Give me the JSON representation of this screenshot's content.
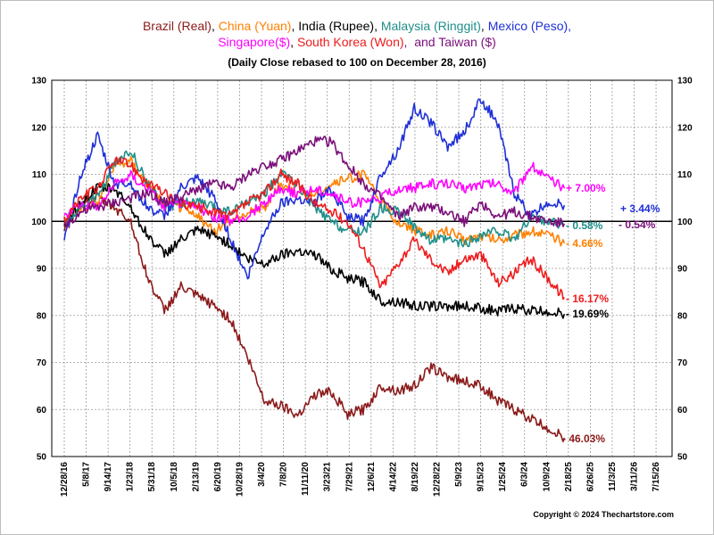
{
  "chart_data": {
    "type": "line",
    "title_parts": [
      {
        "text": "Brazil (Real)",
        "color": "#8b1a1a"
      },
      {
        "text": ", ",
        "color": "#000000"
      },
      {
        "text": "China (Yuan)",
        "color": "#ff8000"
      },
      {
        "text": ", India (Rupee), ",
        "color": "#000000"
      },
      {
        "text": "Malaysia (Ringgit)",
        "color": "#1f8f8a"
      },
      {
        "text": ", ",
        "color": "#000000"
      },
      {
        "text": "Mexico (Peso),",
        "color": "#1f2fd6"
      },
      {
        "text": "\n",
        "color": "#000000"
      },
      {
        "text": "Singapore($)",
        "color": "#ff00ff"
      },
      {
        "text": ", ",
        "color": "#000000"
      },
      {
        "text": "South Korea (Won)",
        "color": "#ee1c1c"
      },
      {
        "text": ",  and Taiwan ($)",
        "color": "#7a0f7a"
      }
    ],
    "subtitle": "(Daily Close rebased to 100 on December 28, 2016)",
    "copyright": "Copyright © 2024 Thechartstore.com",
    "x_tick_labels": [
      "12/28/16",
      "5/8/17",
      "9/14/17",
      "1/23/18",
      "5/31/18",
      "10/5/18",
      "2/13/19",
      "6/20/19",
      "10/28/19",
      "3/4/20",
      "7/8/20",
      "11/11/20",
      "3/23/21",
      "7/29/21",
      "12/6/21",
      "4/14/22",
      "8/19/22",
      "12/28/22",
      "5/9/23",
      "9/15/23",
      "1/25/24",
      "6/3/24",
      "10/9/24",
      "2/18/25",
      "6/26/25",
      "11/3/25",
      "3/11/26",
      "7/15/26"
    ],
    "y_ticks": [
      50,
      60,
      70,
      80,
      90,
      100,
      110,
      120,
      130
    ],
    "ylim": [
      50,
      130
    ],
    "baseline": 100,
    "grid": true,
    "series": [
      {
        "name": "Brazil (Real)",
        "color": "#8b1a1a",
        "end_label": "- 46.03%",
        "points": [
          [
            0,
            98
          ],
          [
            1,
            104
          ],
          [
            2,
            105
          ],
          [
            3,
            103
          ],
          [
            4,
            100
          ],
          [
            5,
            88
          ],
          [
            6,
            81
          ],
          [
            7,
            86
          ],
          [
            8,
            84
          ],
          [
            9,
            82
          ],
          [
            10,
            79
          ],
          [
            11,
            71
          ],
          [
            12,
            62
          ],
          [
            13,
            61
          ],
          [
            14,
            59
          ],
          [
            15,
            63
          ],
          [
            16,
            64
          ],
          [
            17,
            59
          ],
          [
            18,
            60
          ],
          [
            19,
            65
          ],
          [
            20,
            64
          ],
          [
            21,
            65
          ],
          [
            22,
            69
          ],
          [
            23,
            67
          ],
          [
            24,
            66
          ],
          [
            25,
            65
          ],
          [
            26,
            62
          ],
          [
            27,
            60
          ],
          [
            28,
            58
          ],
          [
            29,
            56
          ],
          [
            30,
            53.97
          ]
        ]
      },
      {
        "name": "China (Yuan)",
        "color": "#ff8000",
        "end_label": "- 4.66%",
        "points": [
          [
            0,
            100
          ],
          [
            1,
            103
          ],
          [
            2,
            104
          ],
          [
            3,
            112
          ],
          [
            4,
            113
          ],
          [
            5,
            108
          ],
          [
            6,
            104
          ],
          [
            7,
            103
          ],
          [
            8,
            101
          ],
          [
            9,
            98
          ],
          [
            10,
            100
          ],
          [
            11,
            102
          ],
          [
            12,
            103
          ],
          [
            13,
            108
          ],
          [
            14,
            106
          ],
          [
            15,
            106
          ],
          [
            16,
            108
          ],
          [
            17,
            109
          ],
          [
            18,
            110
          ],
          [
            19,
            104
          ],
          [
            20,
            100
          ],
          [
            21,
            98
          ],
          [
            22,
            97
          ],
          [
            23,
            98
          ],
          [
            24,
            96
          ],
          [
            25,
            97
          ],
          [
            26,
            96
          ],
          [
            27,
            97
          ],
          [
            28,
            98
          ],
          [
            29,
            97
          ],
          [
            30,
            95.34
          ]
        ]
      },
      {
        "name": "India (Rupee)",
        "color": "#000000",
        "end_label": "- 19.69%",
        "points": [
          [
            0,
            99
          ],
          [
            1,
            104
          ],
          [
            2,
            107
          ],
          [
            3,
            107
          ],
          [
            4,
            103
          ],
          [
            5,
            97
          ],
          [
            6,
            93
          ],
          [
            7,
            96
          ],
          [
            8,
            98
          ],
          [
            9,
            97
          ],
          [
            10,
            95
          ],
          [
            11,
            92
          ],
          [
            12,
            91
          ],
          [
            13,
            93
          ],
          [
            14,
            94
          ],
          [
            15,
            93
          ],
          [
            16,
            90
          ],
          [
            17,
            88
          ],
          [
            18,
            87
          ],
          [
            19,
            83
          ],
          [
            20,
            83
          ],
          [
            21,
            82
          ],
          [
            22,
            82
          ],
          [
            23,
            82
          ],
          [
            24,
            82
          ],
          [
            25,
            81.5
          ],
          [
            26,
            81
          ],
          [
            27,
            81.5
          ],
          [
            28,
            81
          ],
          [
            29,
            80.8
          ],
          [
            30,
            80.31
          ]
        ]
      },
      {
        "name": "Malaysia (Ringgit)",
        "color": "#1f8f8a",
        "end_label": "- 0.58%",
        "points": [
          [
            0,
            100
          ],
          [
            1,
            103
          ],
          [
            2,
            105
          ],
          [
            3,
            112
          ],
          [
            4,
            115
          ],
          [
            5,
            108
          ],
          [
            6,
            103
          ],
          [
            7,
            104
          ],
          [
            8,
            104
          ],
          [
            9,
            103
          ],
          [
            10,
            102
          ],
          [
            11,
            104
          ],
          [
            12,
            106
          ],
          [
            13,
            110
          ],
          [
            14,
            108
          ],
          [
            15,
            103
          ],
          [
            16,
            100
          ],
          [
            17,
            98
          ],
          [
            18,
            98
          ],
          [
            19,
            103
          ],
          [
            20,
            102
          ],
          [
            21,
            99
          ],
          [
            22,
            96
          ],
          [
            23,
            96
          ],
          [
            24,
            95
          ],
          [
            25,
            97
          ],
          [
            26,
            98
          ],
          [
            27,
            96
          ],
          [
            28,
            101
          ],
          [
            29,
            100
          ],
          [
            30,
            99.42
          ]
        ]
      },
      {
        "name": "Mexico (Peso)",
        "color": "#1f2fd6",
        "end_label": "+ 3.44%",
        "points": [
          [
            0,
            96
          ],
          [
            1,
            110
          ],
          [
            2,
            118
          ],
          [
            3,
            108
          ],
          [
            4,
            108
          ],
          [
            5,
            103
          ],
          [
            6,
            101
          ],
          [
            7,
            107
          ],
          [
            8,
            109
          ],
          [
            9,
            105
          ],
          [
            10,
            96
          ],
          [
            11,
            88
          ],
          [
            12,
            98
          ],
          [
            13,
            104
          ],
          [
            14,
            105
          ],
          [
            15,
            104
          ],
          [
            16,
            107
          ],
          [
            17,
            101
          ],
          [
            18,
            100
          ],
          [
            19,
            110
          ],
          [
            20,
            115
          ],
          [
            21,
            124
          ],
          [
            22,
            121
          ],
          [
            23,
            116
          ],
          [
            24,
            119
          ],
          [
            25,
            126
          ],
          [
            26,
            121
          ],
          [
            27,
            106
          ],
          [
            28,
            101
          ],
          [
            29,
            104
          ],
          [
            30,
            103.44
          ]
        ]
      },
      {
        "name": "Singapore($)",
        "color": "#ff00ff",
        "end_label": "+ 7.00%",
        "points": [
          [
            0,
            101
          ],
          [
            1,
            104
          ],
          [
            2,
            103
          ],
          [
            3,
            108
          ],
          [
            4,
            110
          ],
          [
            5,
            107
          ],
          [
            6,
            103
          ],
          [
            7,
            104
          ],
          [
            8,
            103
          ],
          [
            9,
            101
          ],
          [
            10,
            100
          ],
          [
            11,
            101
          ],
          [
            12,
            104
          ],
          [
            13,
            107
          ],
          [
            14,
            106
          ],
          [
            15,
            107
          ],
          [
            16,
            106
          ],
          [
            17,
            104
          ],
          [
            18,
            104
          ],
          [
            19,
            105
          ],
          [
            20,
            107
          ],
          [
            21,
            107
          ],
          [
            22,
            108
          ],
          [
            23,
            108
          ],
          [
            24,
            107
          ],
          [
            25,
            108
          ],
          [
            26,
            108
          ],
          [
            27,
            106
          ],
          [
            28,
            112
          ],
          [
            29,
            109
          ],
          [
            30,
            107.0
          ]
        ]
      },
      {
        "name": "South Korea (Won)",
        "color": "#ee1c1c",
        "end_label": "- 16.17%",
        "points": [
          [
            0,
            100
          ],
          [
            1,
            105
          ],
          [
            2,
            107
          ],
          [
            3,
            113
          ],
          [
            4,
            112
          ],
          [
            5,
            108
          ],
          [
            6,
            106
          ],
          [
            7,
            104
          ],
          [
            8,
            103
          ],
          [
            9,
            102
          ],
          [
            10,
            101
          ],
          [
            11,
            104
          ],
          [
            12,
            106
          ],
          [
            13,
            110
          ],
          [
            14,
            108
          ],
          [
            15,
            104
          ],
          [
            16,
            102
          ],
          [
            17,
            100
          ],
          [
            18,
            94
          ],
          [
            19,
            86
          ],
          [
            20,
            91
          ],
          [
            21,
            96
          ],
          [
            22,
            92
          ],
          [
            23,
            89
          ],
          [
            24,
            92
          ],
          [
            25,
            93
          ],
          [
            26,
            87
          ],
          [
            27,
            89
          ],
          [
            28,
            92
          ],
          [
            29,
            88
          ],
          [
            30,
            83.83
          ]
        ]
      },
      {
        "name": "Taiwan ($)",
        "color": "#7a0f7a",
        "end_label": "- 0.54%",
        "points": [
          [
            0,
            99
          ],
          [
            1,
            102
          ],
          [
            2,
            103
          ],
          [
            3,
            104
          ],
          [
            4,
            105
          ],
          [
            5,
            106
          ],
          [
            6,
            104
          ],
          [
            7,
            105
          ],
          [
            8,
            107
          ],
          [
            9,
            108
          ],
          [
            10,
            107
          ],
          [
            11,
            110
          ],
          [
            12,
            112
          ],
          [
            13,
            113
          ],
          [
            14,
            115
          ],
          [
            15,
            117
          ],
          [
            16,
            117
          ],
          [
            17,
            112
          ],
          [
            18,
            108
          ],
          [
            19,
            105
          ],
          [
            20,
            101
          ],
          [
            21,
            103
          ],
          [
            22,
            103
          ],
          [
            23,
            102
          ],
          [
            24,
            100
          ],
          [
            25,
            104
          ],
          [
            26,
            101
          ],
          [
            27,
            102
          ],
          [
            28,
            101
          ],
          [
            29,
            100
          ],
          [
            30,
            99.46
          ]
        ]
      }
    ]
  }
}
